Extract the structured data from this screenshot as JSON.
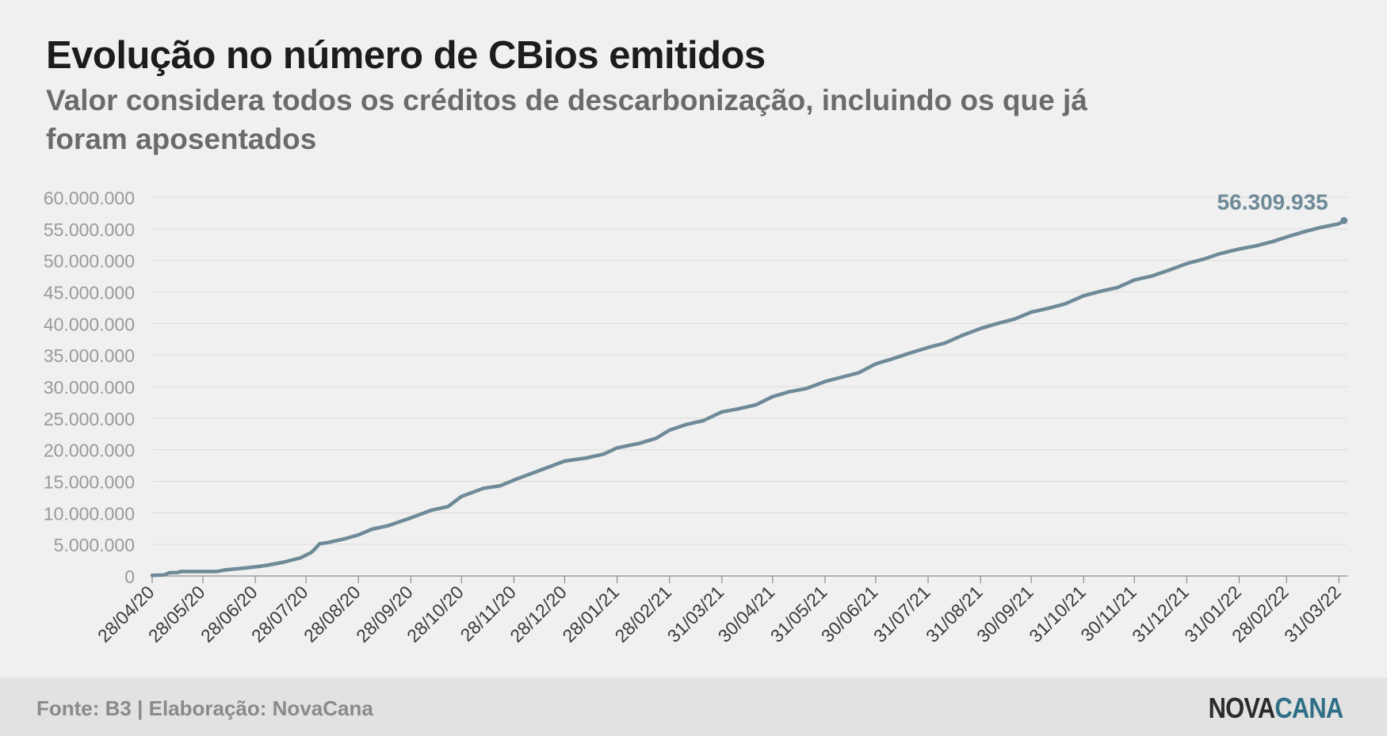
{
  "header": {
    "title": "Evolução no número de CBios emitidos",
    "subtitle": "Valor considera todos os créditos de descarbonização, incluindo os que já foram aposentados"
  },
  "footer": {
    "source": "Fonte: B3 | Elaboração: NovaCana",
    "logo_part1": "NOVA",
    "logo_part2": "CANA"
  },
  "colors": {
    "background": "#f0f0f0",
    "line": "#6e8a98",
    "end_label": "#6e8a98",
    "grid": "#dcdcdc",
    "tick_text": "#9a9a9a",
    "x_tick_text": "#3a3a3a",
    "footer_background": "#e2e2e2",
    "logo_nova": "#2b2b2b",
    "logo_cana": "#2f6f86"
  },
  "chart_data": {
    "type": "line",
    "title": "Evolução no número de CBios emitidos",
    "subtitle": "Valor considera todos os créditos de descarbonização, incluindo os que já foram aposentados",
    "xlabel": "",
    "ylabel": "",
    "ylim": [
      0,
      60000000
    ],
    "xlim": [
      "2020-04-28",
      "2022-04-05"
    ],
    "yticks": [
      0,
      5000000,
      10000000,
      15000000,
      20000000,
      25000000,
      30000000,
      35000000,
      40000000,
      45000000,
      50000000,
      55000000,
      60000000
    ],
    "ytick_labels": [
      "0",
      "5.000.000",
      "10.000.000",
      "15.000.000",
      "20.000.000",
      "25.000.000",
      "30.000.000",
      "35.000.000",
      "40.000.000",
      "45.000.000",
      "50.000.000",
      "55.000.000",
      "60.000.000"
    ],
    "xticks": [
      "2020-04-28",
      "2020-05-28",
      "2020-06-28",
      "2020-07-28",
      "2020-08-28",
      "2020-09-28",
      "2020-10-28",
      "2020-11-28",
      "2020-12-28",
      "2021-01-28",
      "2021-02-28",
      "2021-03-31",
      "2021-04-30",
      "2021-05-31",
      "2021-06-30",
      "2021-07-31",
      "2021-08-31",
      "2021-09-30",
      "2021-10-31",
      "2021-11-30",
      "2021-12-31",
      "2022-01-31",
      "2022-02-28",
      "2022-03-31"
    ],
    "xtick_labels": [
      "28/04/20",
      "28/05/20",
      "28/06/20",
      "28/07/20",
      "28/08/20",
      "28/09/20",
      "28/10/20",
      "28/11/20",
      "28/12/20",
      "28/01/21",
      "28/02/21",
      "31/03/21",
      "30/04/21",
      "31/05/21",
      "30/06/21",
      "31/07/21",
      "31/08/21",
      "30/09/21",
      "31/10/21",
      "30/11/21",
      "31/12/21",
      "31/01/22",
      "28/02/22",
      "31/03/22"
    ],
    "grid": true,
    "series": [
      {
        "x": [
          "2020-04-28",
          "2020-05-05",
          "2020-05-08",
          "2020-05-13",
          "2020-05-15",
          "2020-06-05",
          "2020-06-10",
          "2020-06-20",
          "2020-06-30",
          "2020-07-05",
          "2020-07-15",
          "2020-07-25",
          "2020-07-31",
          "2020-08-02",
          "2020-08-05",
          "2020-08-10",
          "2020-08-20",
          "2020-08-28",
          "2020-09-05",
          "2020-09-15",
          "2020-09-28",
          "2020-10-10",
          "2020-10-20",
          "2020-10-28",
          "2020-11-10",
          "2020-11-20",
          "2020-11-28",
          "2020-12-05",
          "2020-12-15",
          "2020-12-28",
          "2021-01-10",
          "2021-01-20",
          "2021-01-28",
          "2021-02-10",
          "2021-02-20",
          "2021-02-28",
          "2021-03-10",
          "2021-03-20",
          "2021-03-31",
          "2021-04-10",
          "2021-04-20",
          "2021-04-30",
          "2021-05-10",
          "2021-05-20",
          "2021-05-31",
          "2021-06-10",
          "2021-06-20",
          "2021-06-30",
          "2021-07-10",
          "2021-07-20",
          "2021-07-31",
          "2021-08-10",
          "2021-08-20",
          "2021-08-31",
          "2021-09-10",
          "2021-09-20",
          "2021-09-30",
          "2021-10-10",
          "2021-10-20",
          "2021-10-31",
          "2021-11-10",
          "2021-11-20",
          "2021-11-30",
          "2021-12-10",
          "2021-12-20",
          "2021-12-31",
          "2022-01-10",
          "2022-01-20",
          "2022-01-31",
          "2022-02-10",
          "2022-02-20",
          "2022-02-28",
          "2022-03-10",
          "2022-03-20",
          "2022-03-31",
          "2022-04-03"
        ],
        "values": [
          100000,
          150000,
          500000,
          550000,
          700000,
          700000,
          950000,
          1200000,
          1500000,
          1700000,
          2200000,
          2900000,
          3700000,
          4200000,
          5100000,
          5300000,
          5900000,
          6500000,
          7400000,
          8000000,
          9200000,
          10400000,
          11000000,
          12600000,
          13900000,
          14300000,
          15200000,
          15900000,
          16900000,
          18200000,
          18700000,
          19300000,
          20300000,
          21000000,
          21800000,
          23100000,
          24000000,
          24600000,
          26000000,
          26500000,
          27100000,
          28400000,
          29200000,
          29700000,
          30800000,
          31500000,
          32200000,
          33600000,
          34400000,
          35300000,
          36200000,
          36900000,
          38100000,
          39200000,
          40000000,
          40700000,
          41800000,
          42400000,
          43100000,
          44400000,
          45100000,
          45700000,
          46900000,
          47500000,
          48400000,
          49500000,
          50200000,
          51100000,
          51800000,
          52300000,
          53000000,
          53700000,
          54500000,
          55200000,
          55800000,
          56309935
        ]
      }
    ],
    "end_label": "56.309.935"
  }
}
